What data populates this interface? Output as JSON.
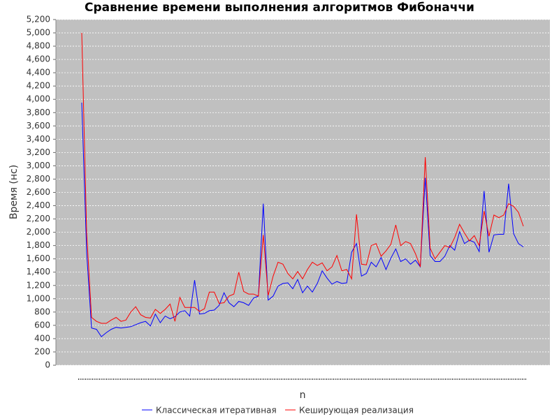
{
  "chart_data": {
    "type": "line",
    "title": "Сравнение времени выполнения алгоритмов Фибоначчи",
    "xlabel": "n",
    "ylabel": "Время (нс)",
    "categories": [
      null,
      null,
      null,
      null,
      null,
      null,
      null,
      null,
      null,
      null,
      null,
      null,
      null,
      null,
      null,
      null,
      null,
      null,
      null,
      null,
      null,
      null,
      null,
      null,
      null,
      null,
      null,
      null,
      null,
      null,
      null,
      null,
      null,
      null,
      null,
      null,
      null,
      null,
      null,
      null,
      null,
      null,
      null,
      null,
      null,
      null,
      null,
      null,
      null,
      null,
      null,
      null,
      null,
      null,
      null,
      null,
      null,
      null,
      null,
      null,
      null,
      null,
      null,
      null,
      null,
      null,
      null,
      null,
      null,
      null,
      null,
      null,
      null,
      null,
      null,
      null,
      null,
      null,
      null,
      null,
      null,
      null,
      null,
      null,
      null,
      null,
      null,
      null,
      null,
      null,
      null
    ],
    "series": [
      {
        "name": "Классическая итеративная",
        "color": "#0000ff",
        "values": [
          3950,
          1700,
          560,
          540,
          430,
          490,
          540,
          570,
          560,
          570,
          580,
          610,
          640,
          660,
          590,
          770,
          640,
          740,
          700,
          730,
          800,
          820,
          740,
          1280,
          770,
          780,
          820,
          830,
          900,
          1090,
          940,
          880,
          960,
          940,
          900,
          1010,
          1040,
          2430,
          980,
          1040,
          1190,
          1230,
          1240,
          1150,
          1290,
          1090,
          1190,
          1100,
          1230,
          1420,
          1310,
          1220,
          1260,
          1230,
          1240,
          1700,
          1830,
          1340,
          1380,
          1550,
          1480,
          1620,
          1440,
          1610,
          1750,
          1560,
          1600,
          1520,
          1580,
          1480,
          2820,
          1650,
          1560,
          1560,
          1640,
          1800,
          1730,
          2010,
          1830,
          1880,
          1850,
          1710,
          2620,
          1700,
          1960,
          1970,
          1970,
          2730,
          1980,
          1830,
          1780
        ]
      },
      {
        "name": "Кеширующая реализация",
        "color": "#ff0000",
        "values": [
          5000,
          2000,
          720,
          660,
          630,
          630,
          680,
          720,
          660,
          680,
          800,
          880,
          760,
          720,
          710,
          840,
          780,
          840,
          920,
          660,
          1020,
          870,
          870,
          870,
          810,
          850,
          1100,
          1100,
          930,
          940,
          1040,
          1070,
          1400,
          1110,
          1070,
          1070,
          1040,
          1960,
          1050,
          1340,
          1550,
          1520,
          1380,
          1300,
          1410,
          1300,
          1440,
          1550,
          1500,
          1540,
          1420,
          1480,
          1650,
          1420,
          1440,
          1300,
          2270,
          1520,
          1510,
          1800,
          1830,
          1640,
          1720,
          1820,
          2110,
          1800,
          1860,
          1830,
          1680,
          1480,
          3130,
          1760,
          1600,
          1700,
          1800,
          1770,
          1920,
          2120,
          1990,
          1870,
          1950,
          1800,
          2320,
          1940,
          2260,
          2220,
          2260,
          2430,
          2390,
          2300,
          2090
        ]
      }
    ],
    "ylim": [
      0,
      5200
    ],
    "yticks": [
      0,
      200,
      400,
      600,
      800,
      {
        "value": 1000,
        "label": "1,000"
      },
      {
        "value": 1200,
        "label": "1,200"
      },
      {
        "value": 1400,
        "label": "1,400"
      },
      {
        "value": 1600,
        "label": "1,600"
      },
      {
        "value": 1800,
        "label": "1,800"
      },
      {
        "value": 2000,
        "label": "2,000"
      },
      {
        "value": 2200,
        "label": "2,200"
      },
      {
        "value": 2400,
        "label": "2,400"
      },
      {
        "value": 2600,
        "label": "2,600"
      },
      {
        "value": 2800,
        "label": "2,800"
      },
      {
        "value": 3000,
        "label": "3,000"
      },
      {
        "value": 3200,
        "label": "3,200"
      },
      {
        "value": 3400,
        "label": "3,400"
      },
      {
        "value": 3600,
        "label": "3,600"
      },
      {
        "value": 3800,
        "label": "3,800"
      },
      {
        "value": 4000,
        "label": "4,000"
      },
      {
        "value": 4200,
        "label": "4,200"
      },
      {
        "value": 4400,
        "label": "4,400"
      },
      {
        "value": 4600,
        "label": "4,600"
      },
      {
        "value": 4800,
        "label": "4,800"
      },
      {
        "value": 5000,
        "label": "5,000"
      },
      {
        "value": 5200,
        "label": "5,200"
      }
    ],
    "grid": true,
    "legend": "bottom"
  }
}
